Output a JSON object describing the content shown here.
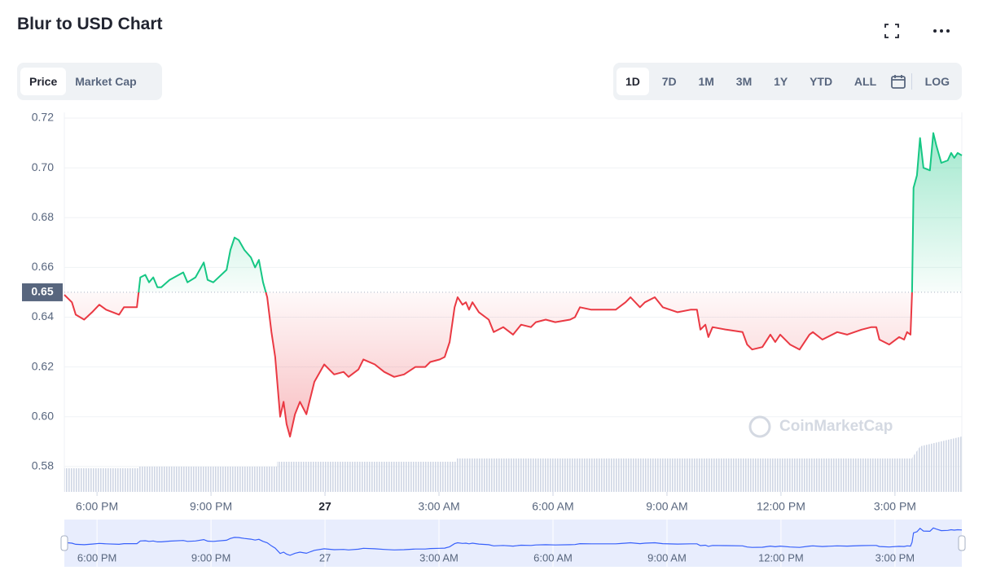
{
  "chart_data": {
    "type": "line",
    "title": "Blur to USD Chart",
    "x": [
      17.14,
      17.34,
      17.44,
      17.66,
      17.87,
      18.06,
      18.24,
      18.58,
      18.71,
      19.05,
      19.14,
      19.27,
      19.37,
      19.48,
      19.59,
      19.69,
      19.91,
      20.27,
      20.38,
      20.59,
      20.81,
      20.91,
      21.06,
      21.41,
      21.51,
      21.62,
      21.73,
      21.88,
      22.05,
      22.16,
      22.26,
      22.37,
      22.48,
      22.59,
      22.69,
      22.82,
      22.91,
      22.99,
      23.08,
      23.21,
      23.34,
      23.51,
      23.59,
      23.72,
      23.98,
      24.24,
      24.49,
      24.62,
      24.88,
      25.01,
      25.31,
      25.56,
      25.82,
      26.08,
      26.38,
      26.64,
      26.77,
      27.02,
      27.15,
      27.28,
      27.41,
      27.49,
      27.62,
      27.71,
      27.79,
      27.88,
      28.05,
      28.31,
      28.44,
      28.69,
      28.95,
      29.16,
      29.42,
      29.55,
      29.81,
      30.06,
      30.45,
      30.58,
      30.71,
      31.01,
      31.27,
      31.65,
      31.91,
      32.04,
      32.29,
      32.42,
      32.68,
      32.89,
      33.28,
      33.62,
      33.79,
      33.88,
      34.01,
      34.09,
      34.2,
      34.56,
      34.99,
      35.11,
      35.24,
      35.51,
      35.72,
      35.85,
      35.98,
      36.24,
      36.49,
      36.75,
      36.84,
      37.09,
      37.48,
      37.74,
      38.12,
      38.38,
      38.51,
      38.59,
      38.85,
      39.11,
      39.24,
      39.32,
      39.41,
      39.45,
      39.49,
      39.58,
      39.66,
      39.75,
      39.92,
      40.01,
      40.09,
      40.22,
      40.39,
      40.48,
      40.56,
      40.65,
      40.76
    ],
    "values": [
      0.649,
      0.646,
      0.641,
      0.639,
      0.642,
      0.645,
      0.643,
      0.641,
      0.644,
      0.644,
      0.656,
      0.657,
      0.654,
      0.656,
      0.652,
      0.652,
      0.655,
      0.658,
      0.654,
      0.656,
      0.662,
      0.655,
      0.654,
      0.659,
      0.667,
      0.672,
      0.671,
      0.667,
      0.664,
      0.66,
      0.663,
      0.654,
      0.648,
      0.634,
      0.624,
      0.6,
      0.606,
      0.597,
      0.592,
      0.601,
      0.606,
      0.601,
      0.606,
      0.614,
      0.621,
      0.617,
      0.618,
      0.616,
      0.619,
      0.623,
      0.621,
      0.618,
      0.616,
      0.617,
      0.62,
      0.62,
      0.622,
      0.623,
      0.624,
      0.63,
      0.644,
      0.648,
      0.645,
      0.646,
      0.643,
      0.646,
      0.642,
      0.639,
      0.634,
      0.636,
      0.633,
      0.637,
      0.636,
      0.638,
      0.639,
      0.638,
      0.639,
      0.64,
      0.644,
      0.643,
      0.643,
      0.643,
      0.646,
      0.648,
      0.644,
      0.646,
      0.648,
      0.644,
      0.642,
      0.643,
      0.643,
      0.635,
      0.637,
      0.632,
      0.636,
      0.635,
      0.634,
      0.629,
      0.627,
      0.628,
      0.633,
      0.63,
      0.633,
      0.629,
      0.627,
      0.633,
      0.634,
      0.631,
      0.634,
      0.633,
      0.635,
      0.636,
      0.636,
      0.631,
      0.629,
      0.632,
      0.631,
      0.634,
      0.633,
      0.65,
      0.692,
      0.697,
      0.712,
      0.7,
      0.699,
      0.714,
      0.709,
      0.702,
      0.703,
      0.706,
      0.704,
      0.706,
      0.705
    ],
    "baseline": 0.65,
    "up_color": "#16c784",
    "down_color": "#ea3943",
    "xlim": [
      17.14,
      40.76
    ],
    "xticks": [
      {
        "value": 18,
        "label": "6:00 PM"
      },
      {
        "value": 21,
        "label": "9:00 PM"
      },
      {
        "value": 24,
        "label": "27"
      },
      {
        "value": 27,
        "label": "3:00 AM"
      },
      {
        "value": 30,
        "label": "6:00 AM"
      },
      {
        "value": 33,
        "label": "9:00 AM"
      },
      {
        "value": 36,
        "label": "12:00 PM"
      },
      {
        "value": 39,
        "label": "3:00 PM"
      }
    ],
    "ylim": [
      0.5698,
      0.7223
    ],
    "yticks": [
      0.58,
      {
        "value": 0.6,
        "label": "0.60"
      },
      0.62,
      0.64,
      0.66,
      0.68,
      {
        "value": 0.7,
        "label": "0.70"
      },
      0.72
    ],
    "grid": true,
    "watermark": "CoinMarketCap"
  },
  "tabs": [
    "Price",
    "Market Cap"
  ],
  "time_ranges": [
    "1D",
    "7D",
    "1M",
    "3M",
    "1Y",
    "YTD",
    "ALL"
  ],
  "log_label": "LOG"
}
